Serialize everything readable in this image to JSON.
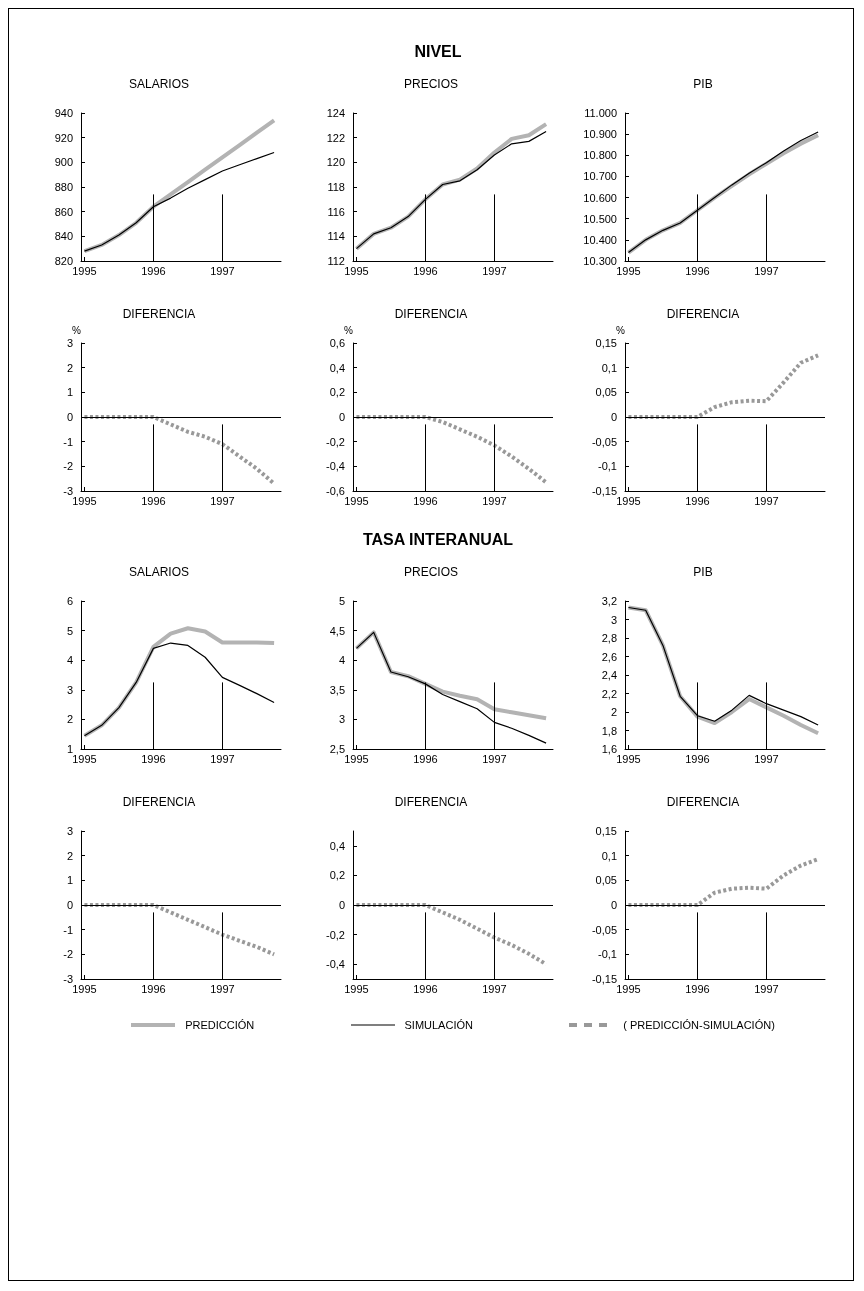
{
  "chart_data": [
    {
      "type": "line",
      "title": "SALARIOS",
      "annotations": [
        "NIVEL"
      ],
      "legend": "bottom",
      "grid": false,
      "marker": "none",
      "x": [
        1995,
        1995.25,
        1995.5,
        1995.75,
        1996,
        1996.25,
        1996.5,
        1996.75,
        1997,
        1997.25,
        1997.5,
        1997.75
      ],
      "xlim": [
        1994.95,
        1997.85
      ],
      "xticks": [
        1995,
        1996,
        1997
      ],
      "ylim": [
        820,
        940
      ],
      "yticks": [
        820,
        840,
        860,
        880,
        900,
        920,
        940
      ],
      "series": [
        {
          "name": "PREDICCIÓN",
          "color": "#b3b3b3",
          "values": [
            828,
            833,
            841,
            851,
            864,
            874,
            884,
            894,
            904,
            914,
            924,
            934
          ]
        },
        {
          "name": "SIMULACIÓN",
          "color": "#000000",
          "values": [
            828,
            833,
            841,
            851,
            864,
            871,
            879,
            886,
            893,
            898,
            903,
            908
          ]
        }
      ],
      "ref_lines": [
        {
          "axis": "x",
          "value": 1996,
          "color": "#000000"
        },
        {
          "axis": "x",
          "value": 1997,
          "color": "#000000"
        }
      ]
    },
    {
      "type": "line",
      "title": "PRECIOS",
      "legend": "bottom",
      "grid": false,
      "marker": "none",
      "x": [
        1995,
        1995.25,
        1995.5,
        1995.75,
        1996,
        1996.25,
        1996.5,
        1996.75,
        1997,
        1997.25,
        1997.5,
        1997.75
      ],
      "xlim": [
        1994.95,
        1997.85
      ],
      "xticks": [
        1995,
        1996,
        1997
      ],
      "ylim": [
        112,
        124
      ],
      "yticks": [
        112,
        114,
        116,
        118,
        120,
        122,
        124
      ],
      "series": [
        {
          "name": "PREDICCIÓN",
          "color": "#b3b3b3",
          "values": [
            113,
            114.2,
            114.7,
            115.6,
            117,
            118.2,
            118.6,
            119.5,
            120.8,
            121.9,
            122.2,
            123.1
          ]
        },
        {
          "name": "SIMULACIÓN",
          "color": "#000000",
          "values": [
            113,
            114.2,
            114.7,
            115.6,
            117,
            118.2,
            118.5,
            119.4,
            120.6,
            121.5,
            121.7,
            122.5
          ]
        }
      ],
      "ref_lines": [
        {
          "axis": "x",
          "value": 1996,
          "color": "#000000"
        },
        {
          "axis": "x",
          "value": 1997,
          "color": "#000000"
        }
      ]
    },
    {
      "type": "line",
      "title": "PIB",
      "legend": "bottom",
      "grid": false,
      "marker": "none",
      "x": [
        1995,
        1995.25,
        1995.5,
        1995.75,
        1996,
        1996.25,
        1996.5,
        1996.75,
        1997,
        1997.25,
        1997.5,
        1997.75
      ],
      "xlim": [
        1994.95,
        1997.85
      ],
      "xticks": [
        1995,
        1996,
        1997
      ],
      "ylim": [
        10300,
        11000
      ],
      "yticks": [
        {
          "value": 10300,
          "label": "10.300"
        },
        {
          "value": 10400,
          "label": "10.400"
        },
        {
          "value": 10500,
          "label": "10.500"
        },
        {
          "value": 10600,
          "label": "10.600"
        },
        {
          "value": 10700,
          "label": "10.700"
        },
        {
          "value": 10800,
          "label": "10.800"
        },
        {
          "value": 10900,
          "label": "10.900"
        },
        {
          "value": 11000,
          "label": "11.000"
        }
      ],
      "series": [
        {
          "name": "PREDICCIÓN",
          "color": "#b3b3b3",
          "values": [
            10340,
            10400,
            10445,
            10480,
            10540,
            10600,
            10655,
            10710,
            10760,
            10810,
            10855,
            10895
          ]
        },
        {
          "name": "SIMULACIÓN",
          "color": "#000000",
          "values": [
            10340,
            10400,
            10445,
            10480,
            10540,
            10600,
            10660,
            10715,
            10765,
            10820,
            10870,
            10910
          ]
        }
      ],
      "ref_lines": [
        {
          "axis": "x",
          "value": 1996,
          "color": "#000000"
        },
        {
          "axis": "x",
          "value": 1997,
          "color": "#000000"
        }
      ]
    },
    {
      "type": "line",
      "title": "DIFERENCIA",
      "ylabel": "%",
      "legend": "bottom",
      "grid": false,
      "marker": "none",
      "x": [
        1995,
        1995.25,
        1995.5,
        1995.75,
        1996,
        1996.25,
        1996.5,
        1996.75,
        1997,
        1997.25,
        1997.5,
        1997.75
      ],
      "xlim": [
        1994.95,
        1997.85
      ],
      "xticks": [
        1995,
        1996,
        1997
      ],
      "ylim": [
        -3,
        3
      ],
      "yticks": [
        -3,
        -2,
        -1,
        0,
        1,
        2,
        3
      ],
      "series": [
        {
          "name": "( PREDICCIÓN-SIMULACIÓN)",
          "color": "#999999",
          "line_style": "dashed",
          "values": [
            0,
            0,
            0,
            0,
            0,
            -0.3,
            -0.6,
            -0.8,
            -1.1,
            -1.6,
            -2.1,
            -2.7
          ]
        }
      ],
      "ref_lines": [
        {
          "axis": "y",
          "value": 0,
          "color": "#000000"
        },
        {
          "axis": "x",
          "value": 1996,
          "color": "#000000"
        },
        {
          "axis": "x",
          "value": 1997,
          "color": "#000000"
        }
      ]
    },
    {
      "type": "line",
      "title": "DIFERENCIA",
      "ylabel": "%",
      "legend": "bottom",
      "grid": false,
      "marker": "none",
      "x": [
        1995,
        1995.25,
        1995.5,
        1995.75,
        1996,
        1996.25,
        1996.5,
        1996.75,
        1997,
        1997.25,
        1997.5,
        1997.75
      ],
      "xlim": [
        1994.95,
        1997.85
      ],
      "xticks": [
        1995,
        1996,
        1997
      ],
      "ylim": [
        -0.6,
        0.6
      ],
      "yticks": [
        {
          "value": -0.6,
          "label": "-0,6"
        },
        {
          "value": -0.4,
          "label": "-0,4"
        },
        {
          "value": -0.2,
          "label": "-0,2"
        },
        0,
        {
          "value": 0.2,
          "label": "0,2"
        },
        {
          "value": 0.4,
          "label": "0,4"
        },
        {
          "value": 0.6,
          "label": "0,6"
        }
      ],
      "series": [
        {
          "name": "( PREDICCIÓN-SIMULACIÓN)",
          "color": "#999999",
          "line_style": "dashed",
          "values": [
            0,
            0,
            0,
            0,
            0,
            -0.04,
            -0.1,
            -0.16,
            -0.23,
            -0.32,
            -0.42,
            -0.53
          ]
        }
      ],
      "ref_lines": [
        {
          "axis": "y",
          "value": 0,
          "color": "#000000"
        },
        {
          "axis": "x",
          "value": 1996,
          "color": "#000000"
        },
        {
          "axis": "x",
          "value": 1997,
          "color": "#000000"
        }
      ]
    },
    {
      "type": "line",
      "title": "DIFERENCIA",
      "ylabel": "%",
      "legend": "bottom",
      "grid": false,
      "marker": "none",
      "x": [
        1995,
        1995.25,
        1995.5,
        1995.75,
        1996,
        1996.25,
        1996.5,
        1996.75,
        1997,
        1997.25,
        1997.5,
        1997.75
      ],
      "xlim": [
        1994.95,
        1997.85
      ],
      "xticks": [
        1995,
        1996,
        1997
      ],
      "ylim": [
        -0.15,
        0.15
      ],
      "yticks": [
        {
          "value": -0.15,
          "label": "-0,15"
        },
        {
          "value": -0.1,
          "label": "-0,1"
        },
        {
          "value": -0.05,
          "label": "-0,05"
        },
        0,
        {
          "value": 0.05,
          "label": "0,05"
        },
        {
          "value": 0.1,
          "label": "0,1"
        },
        {
          "value": 0.15,
          "label": "0,15"
        }
      ],
      "series": [
        {
          "name": "( PREDICCIÓN-SIMULACIÓN)",
          "color": "#999999",
          "line_style": "dashed",
          "values": [
            0,
            0,
            0,
            0,
            0,
            0.02,
            0.03,
            0.033,
            0.032,
            0.07,
            0.11,
            0.125
          ]
        }
      ],
      "ref_lines": [
        {
          "axis": "y",
          "value": 0,
          "color": "#000000"
        },
        {
          "axis": "x",
          "value": 1996,
          "color": "#000000"
        },
        {
          "axis": "x",
          "value": 1997,
          "color": "#000000"
        }
      ]
    },
    {
      "type": "line",
      "title": "SALARIOS",
      "annotations": [
        "TASA INTERANUAL"
      ],
      "legend": "bottom",
      "grid": false,
      "marker": "none",
      "x": [
        1995,
        1995.25,
        1995.5,
        1995.75,
        1996,
        1996.25,
        1996.5,
        1996.75,
        1997,
        1997.25,
        1997.5,
        1997.75
      ],
      "xlim": [
        1994.95,
        1997.85
      ],
      "xticks": [
        1995,
        1996,
        1997
      ],
      "ylim": [
        1,
        6
      ],
      "yticks": [
        1,
        2,
        3,
        4,
        5,
        6
      ],
      "series": [
        {
          "name": "PREDICCIÓN",
          "color": "#b3b3b3",
          "values": [
            1.45,
            1.8,
            2.4,
            3.25,
            4.45,
            4.9,
            5.08,
            4.97,
            4.6,
            4.6,
            4.6,
            4.58
          ]
        },
        {
          "name": "SIMULACIÓN",
          "color": "#000000",
          "values": [
            1.45,
            1.8,
            2.4,
            3.25,
            4.4,
            4.58,
            4.5,
            4.1,
            3.42,
            3.15,
            2.87,
            2.57
          ]
        }
      ],
      "ref_lines": [
        {
          "axis": "x",
          "value": 1996,
          "color": "#000000"
        },
        {
          "axis": "x",
          "value": 1997,
          "color": "#000000"
        }
      ]
    },
    {
      "type": "line",
      "title": "PRECIOS",
      "legend": "bottom",
      "grid": false,
      "marker": "none",
      "x": [
        1995,
        1995.25,
        1995.5,
        1995.75,
        1996,
        1996.25,
        1996.5,
        1996.75,
        1997,
        1997.25,
        1997.5,
        1997.75
      ],
      "xlim": [
        1994.95,
        1997.85
      ],
      "xticks": [
        1995,
        1996,
        1997
      ],
      "ylim": [
        2.5,
        5
      ],
      "yticks": [
        {
          "value": 2.5,
          "label": "2,5"
        },
        3,
        {
          "value": 3.5,
          "label": "3,5"
        },
        4,
        {
          "value": 4.5,
          "label": "4,5"
        },
        5
      ],
      "series": [
        {
          "name": "PREDICCIÓN",
          "color": "#b3b3b3",
          "values": [
            4.2,
            4.47,
            3.8,
            3.73,
            3.6,
            3.47,
            3.4,
            3.34,
            3.17,
            3.12,
            3.07,
            3.02
          ]
        },
        {
          "name": "SIMULACIÓN",
          "color": "#000000",
          "values": [
            4.2,
            4.47,
            3.8,
            3.72,
            3.6,
            3.42,
            3.3,
            3.18,
            2.95,
            2.85,
            2.73,
            2.6
          ]
        }
      ],
      "ref_lines": [
        {
          "axis": "x",
          "value": 1996,
          "color": "#000000"
        },
        {
          "axis": "x",
          "value": 1997,
          "color": "#000000"
        }
      ]
    },
    {
      "type": "line",
      "title": "PIB",
      "legend": "bottom",
      "grid": false,
      "marker": "none",
      "x": [
        1995,
        1995.25,
        1995.5,
        1995.75,
        1996,
        1996.25,
        1996.5,
        1996.75,
        1997,
        1997.25,
        1997.5,
        1997.75
      ],
      "xlim": [
        1994.95,
        1997.85
      ],
      "xticks": [
        1995,
        1996,
        1997
      ],
      "ylim": [
        1.6,
        3.2
      ],
      "yticks": [
        {
          "value": 1.6,
          "label": "1,6"
        },
        {
          "value": 1.8,
          "label": "1,8"
        },
        2,
        {
          "value": 2.2,
          "label": "2,2"
        },
        {
          "value": 2.4,
          "label": "2,4"
        },
        {
          "value": 2.6,
          "label": "2,6"
        },
        {
          "value": 2.8,
          "label": "2,8"
        },
        3,
        {
          "value": 3.2,
          "label": "3,2"
        }
      ],
      "series": [
        {
          "name": "PREDICCIÓN",
          "color": "#b3b3b3",
          "values": [
            3.13,
            3.1,
            2.72,
            2.17,
            1.95,
            1.88,
            2,
            2.14,
            2.05,
            1.96,
            1.86,
            1.77
          ]
        },
        {
          "name": "SIMULACIÓN",
          "color": "#000000",
          "values": [
            3.13,
            3.1,
            2.72,
            2.17,
            1.96,
            1.9,
            2.02,
            2.18,
            2.09,
            2.02,
            1.95,
            1.86
          ]
        }
      ],
      "ref_lines": [
        {
          "axis": "x",
          "value": 1996,
          "color": "#000000"
        },
        {
          "axis": "x",
          "value": 1997,
          "color": "#000000"
        }
      ]
    },
    {
      "type": "line",
      "title": "DIFERENCIA",
      "legend": "bottom",
      "grid": false,
      "marker": "none",
      "x": [
        1995,
        1995.25,
        1995.5,
        1995.75,
        1996,
        1996.25,
        1996.5,
        1996.75,
        1997,
        1997.25,
        1997.5,
        1997.75
      ],
      "xlim": [
        1994.95,
        1997.85
      ],
      "xticks": [
        1995,
        1996,
        1997
      ],
      "ylim": [
        -3,
        3
      ],
      "yticks": [
        -3,
        -2,
        -1,
        0,
        1,
        2,
        3
      ],
      "series": [
        {
          "name": "( PREDICCIÓN-SIMULACIÓN)",
          "color": "#999999",
          "line_style": "dashed",
          "values": [
            0,
            0,
            0,
            0,
            0,
            -0.3,
            -0.6,
            -0.9,
            -1.2,
            -1.45,
            -1.7,
            -2
          ]
        }
      ],
      "ref_lines": [
        {
          "axis": "y",
          "value": 0,
          "color": "#000000"
        },
        {
          "axis": "x",
          "value": 1996,
          "color": "#000000"
        },
        {
          "axis": "x",
          "value": 1997,
          "color": "#000000"
        }
      ]
    },
    {
      "type": "line",
      "title": "DIFERENCIA",
      "legend": "bottom",
      "grid": false,
      "marker": "none",
      "x": [
        1995,
        1995.25,
        1995.5,
        1995.75,
        1996,
        1996.25,
        1996.5,
        1996.75,
        1997,
        1997.25,
        1997.5,
        1997.75
      ],
      "xlim": [
        1994.95,
        1997.85
      ],
      "xticks": [
        1995,
        1996,
        1997
      ],
      "ylim": [
        -0.5,
        0.5
      ],
      "yticks": [
        {
          "value": -0.4,
          "label": "-0,4"
        },
        {
          "value": -0.2,
          "label": "-0,2"
        },
        0,
        {
          "value": 0.2,
          "label": "0,2"
        },
        {
          "value": 0.4,
          "label": "0,4"
        }
      ],
      "series": [
        {
          "name": "( PREDICCIÓN-SIMULACIÓN)",
          "color": "#999999",
          "line_style": "dashed",
          "values": [
            0,
            0,
            0,
            0,
            0,
            -0.05,
            -0.1,
            -0.16,
            -0.22,
            -0.27,
            -0.33,
            -0.4
          ]
        }
      ],
      "ref_lines": [
        {
          "axis": "y",
          "value": 0,
          "color": "#000000"
        },
        {
          "axis": "x",
          "value": 1996,
          "color": "#000000"
        },
        {
          "axis": "x",
          "value": 1997,
          "color": "#000000"
        }
      ]
    },
    {
      "type": "line",
      "title": "DIFERENCIA",
      "legend": "bottom",
      "grid": false,
      "marker": "none",
      "x": [
        1995,
        1995.25,
        1995.5,
        1995.75,
        1996,
        1996.25,
        1996.5,
        1996.75,
        1997,
        1997.25,
        1997.5,
        1997.75
      ],
      "xlim": [
        1994.95,
        1997.85
      ],
      "xticks": [
        1995,
        1996,
        1997
      ],
      "ylim": [
        -0.15,
        0.15
      ],
      "yticks": [
        {
          "value": -0.15,
          "label": "-0,15"
        },
        {
          "value": -0.1,
          "label": "-0,1"
        },
        {
          "value": -0.05,
          "label": "-0,05"
        },
        0,
        {
          "value": 0.05,
          "label": "0,05"
        },
        {
          "value": 0.1,
          "label": "0,1"
        },
        {
          "value": 0.15,
          "label": "0,15"
        }
      ],
      "series": [
        {
          "name": "( PREDICCIÓN-SIMULACIÓN)",
          "color": "#999999",
          "line_style": "dashed",
          "values": [
            0,
            0,
            0,
            0,
            0,
            0.025,
            0.033,
            0.035,
            0.033,
            0.06,
            0.08,
            0.093
          ]
        }
      ],
      "ref_lines": [
        {
          "axis": "y",
          "value": 0,
          "color": "#000000"
        },
        {
          "axis": "x",
          "value": 1996,
          "color": "#000000"
        },
        {
          "axis": "x",
          "value": 1997,
          "color": "#000000"
        }
      ]
    }
  ]
}
